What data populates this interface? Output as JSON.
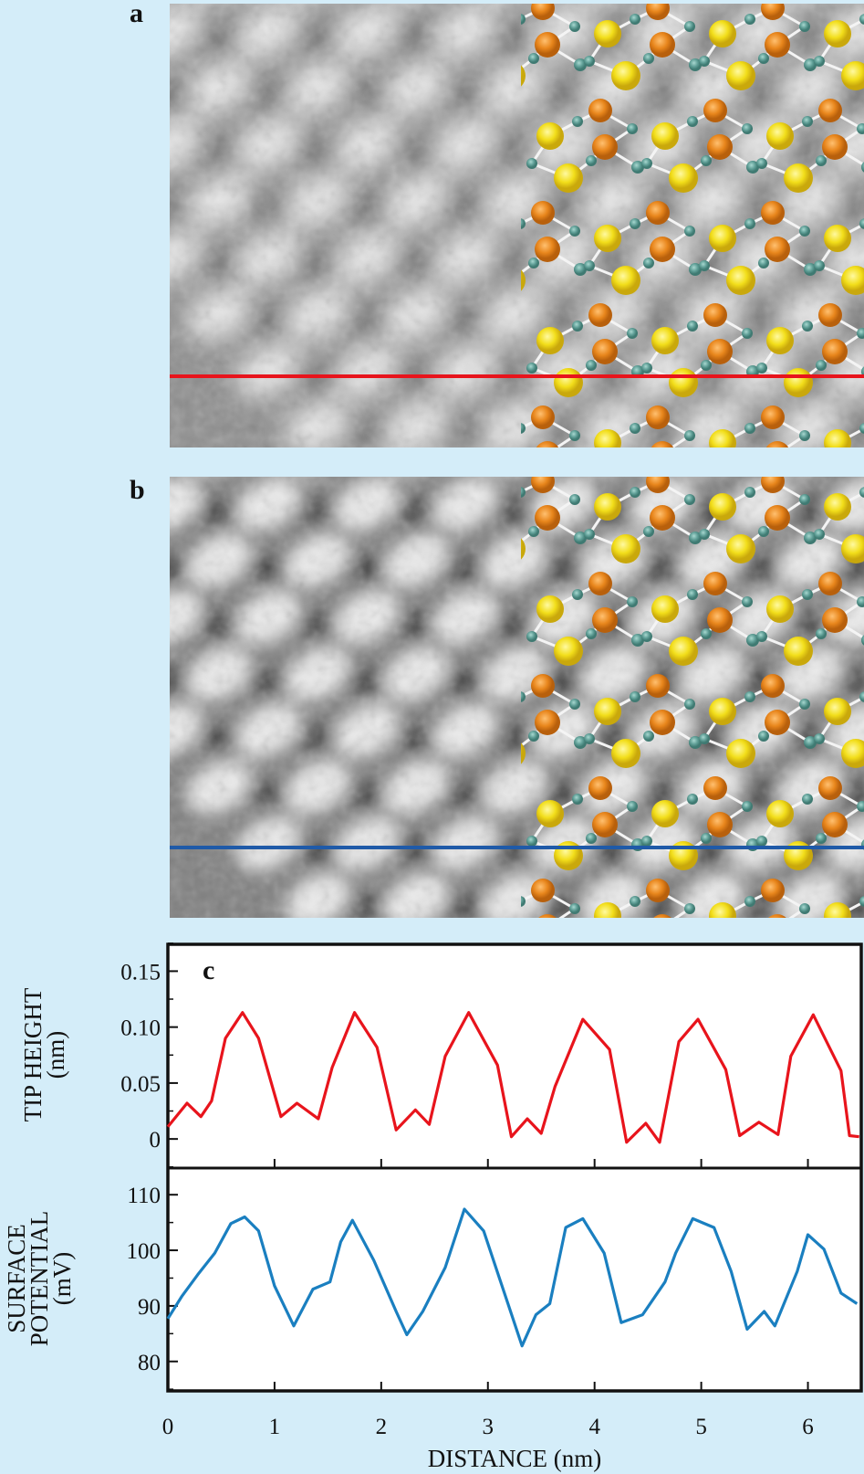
{
  "panels": {
    "a": {
      "label": "a",
      "line_color": "#e8141c"
    },
    "b": {
      "label": "b",
      "line_color": "#1f5aa8"
    },
    "c": {
      "label": "c"
    }
  },
  "atom_colors": {
    "large": "#f2de1a",
    "medium": "#e8861c",
    "small": "#5f9e96",
    "bond": "#f4f4f4"
  },
  "chart_data": [
    {
      "type": "line",
      "panel": "c-top",
      "xlabel": "DISTANCE (nm)",
      "ylabel_lines": [
        "TIP HEIGHT",
        "(nm)"
      ],
      "xlim": [
        0,
        6.5
      ],
      "ylim": [
        -0.026,
        0.174
      ],
      "xticks": [
        "0",
        "1",
        "2",
        "3",
        "4",
        "5",
        "6"
      ],
      "yticks": [
        "0",
        "0.05",
        "0.10",
        "0.15"
      ],
      "ytick_values": [
        0,
        0.05,
        0.1,
        0.15
      ],
      "grid": false,
      "series": [
        {
          "color": "#e8141c",
          "x": [
            0,
            0.18,
            0.31,
            0.41,
            0.54,
            0.7,
            0.85,
            1.06,
            1.21,
            1.41,
            1.54,
            1.75,
            1.96,
            2.14,
            2.32,
            2.45,
            2.6,
            2.82,
            3.09,
            3.22,
            3.37,
            3.5,
            3.63,
            3.89,
            4.14,
            4.3,
            4.48,
            4.61,
            4.79,
            4.97,
            5.23,
            5.36,
            5.54,
            5.72,
            5.84,
            6.05,
            6.31,
            6.39,
            6.48
          ],
          "y": [
            0.011,
            0.032,
            0.02,
            0.034,
            0.09,
            0.113,
            0.09,
            0.02,
            0.032,
            0.018,
            0.064,
            0.113,
            0.082,
            0.008,
            0.026,
            0.013,
            0.074,
            0.113,
            0.066,
            0.002,
            0.018,
            0.005,
            0.047,
            0.107,
            0.08,
            -0.003,
            0.014,
            -0.003,
            0.087,
            0.107,
            0.062,
            0.003,
            0.015,
            0.004,
            0.074,
            0.111,
            0.061,
            0.003,
            0.002
          ]
        }
      ]
    },
    {
      "type": "line",
      "panel": "c-bottom",
      "ylabel_lines": [
        "SURFACE",
        "POTENTIAL",
        "(mV)"
      ],
      "xlim": [
        0,
        6.5
      ],
      "ylim": [
        74.7,
        114.8
      ],
      "yticks": [
        "80",
        "90",
        "100",
        "110"
      ],
      "ytick_values": [
        80,
        90,
        100,
        110
      ],
      "grid": false,
      "series": [
        {
          "color": "#1a7fc0",
          "x": [
            0,
            0.13,
            0.28,
            0.44,
            0.59,
            0.72,
            0.85,
            1.0,
            1.18,
            1.36,
            1.52,
            1.62,
            1.73,
            1.93,
            2.14,
            2.24,
            2.39,
            2.6,
            2.78,
            2.96,
            3.12,
            3.32,
            3.45,
            3.58,
            3.73,
            3.89,
            4.09,
            4.25,
            4.45,
            4.66,
            4.76,
            4.92,
            5.12,
            5.28,
            5.43,
            5.59,
            5.69,
            5.9,
            6.0,
            6.15,
            6.31,
            6.46
          ],
          "y": [
            87.7,
            91.7,
            95.6,
            99.5,
            104.8,
            106,
            103.5,
            93.6,
            86.4,
            93,
            94.3,
            101.5,
            105.4,
            98.2,
            89,
            84.8,
            89,
            96.9,
            107.4,
            103.5,
            94.3,
            82.8,
            88.4,
            90.4,
            104.1,
            105.7,
            99.5,
            87,
            88.4,
            94.3,
            99.5,
            105.7,
            104.1,
            96.2,
            85.8,
            89,
            86.4,
            96.2,
            102.8,
            100.2,
            92.3,
            90.4
          ]
        }
      ]
    }
  ]
}
